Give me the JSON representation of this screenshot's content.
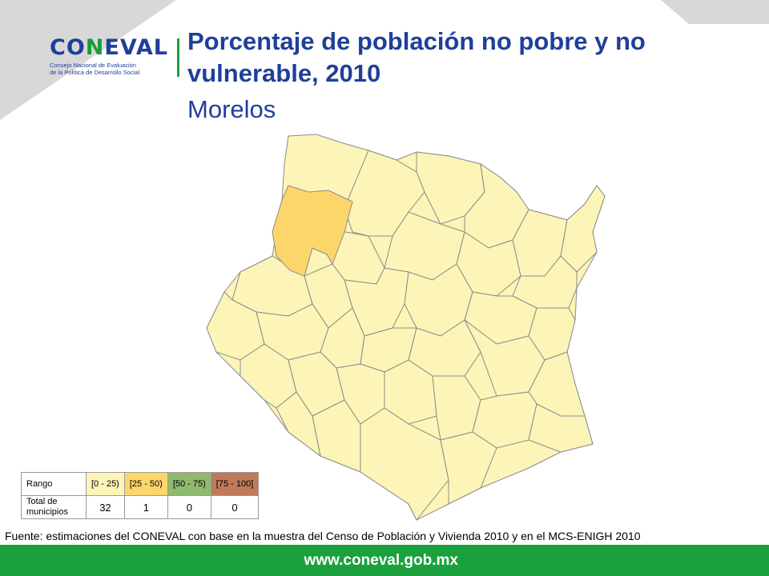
{
  "header": {
    "logo_word_a": "CO",
    "logo_word_b": "N",
    "logo_word_c": "EVAL",
    "logo_sub_1": "Consejo Nacional de Evaluación",
    "logo_sub_2": "de la Política de Desarrollo Social",
    "title": "Porcentaje de población no pobre y no vulnerable, 2010",
    "subtitle": "Morelos"
  },
  "colors": {
    "range_0_25": "#fdf5b8",
    "range_25_50": "#fdd66b",
    "range_50_75": "#8fba6d",
    "range_75_100": "#c07a5a",
    "border": "#8a8a8a",
    "brand_blue": "#1f3f9a",
    "brand_green": "#1aa03c"
  },
  "legend": {
    "row1_label": "Rango",
    "row2_label": "Total de municipios",
    "ranges": [
      "[0 - 25)",
      "[25 - 50)",
      "[50 - 75)",
      "[75 - 100]"
    ],
    "counts": [
      "32",
      "1",
      "0",
      "0"
    ]
  },
  "source": "Fuente: estimaciones del CONEVAL con base en la muestra del Censo de Población y Vivienda 2010 y en el MCS-ENIGH 2010",
  "footer": {
    "url": "www.coneval.gob.mx"
  }
}
